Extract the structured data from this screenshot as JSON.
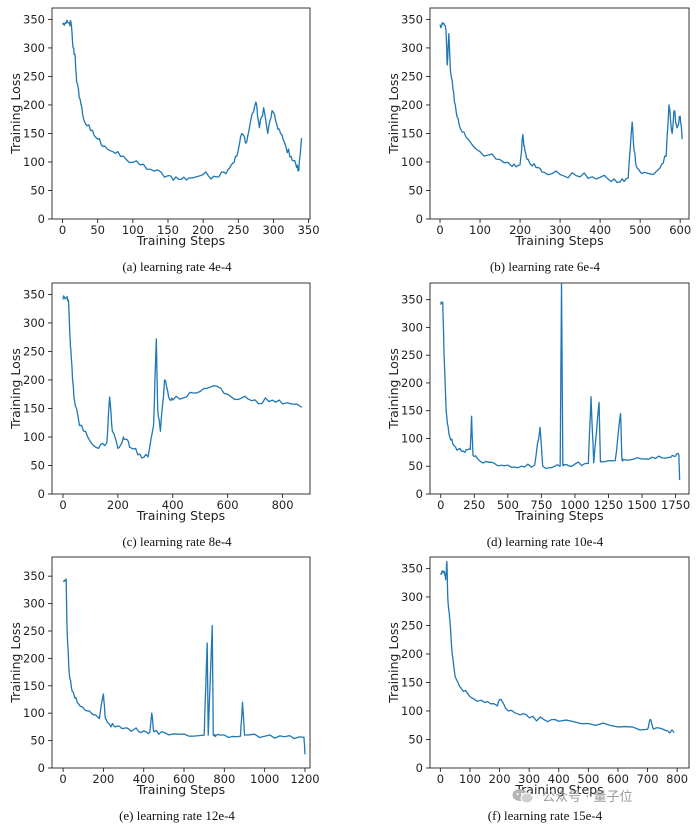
{
  "chart_data": [
    {
      "type": "line",
      "caption": "(a) learning rate 4e-4",
      "xlabel": "Training Steps",
      "ylabel": "Training Loss",
      "xlim": [
        -15,
        352
      ],
      "ylim": [
        0,
        370
      ],
      "xticks": [
        0,
        50,
        100,
        150,
        200,
        250,
        300,
        350
      ],
      "yticks": [
        0,
        50,
        100,
        150,
        200,
        250,
        300,
        350
      ],
      "color": "#1f77b4",
      "series": [
        {
          "x": [
            0,
            5,
            10,
            12,
            15,
            18,
            20,
            25,
            30,
            40,
            50,
            60,
            75,
            90,
            110,
            130,
            150,
            165,
            180,
            200,
            215,
            230,
            240,
            248,
            255,
            262,
            268,
            275,
            280,
            286,
            292,
            298,
            305,
            310,
            318,
            325,
            332,
            336,
            340
          ],
          "y": [
            341,
            343,
            342,
            345,
            300,
            285,
            240,
            210,
            175,
            155,
            140,
            128,
            115,
            105,
            95,
            84,
            76,
            70,
            72,
            78,
            75,
            82,
            95,
            110,
            150,
            135,
            175,
            205,
            160,
            195,
            150,
            190,
            165,
            150,
            125,
            110,
            95,
            85,
            142
          ],
          "noise": 6
        }
      ]
    },
    {
      "type": "line",
      "caption": "(b) learning rate 6e-4",
      "xlabel": "Training Steps",
      "ylabel": "Training Loss",
      "xlim": [
        -25,
        622
      ],
      "ylim": [
        0,
        370
      ],
      "xticks": [
        0,
        100,
        200,
        300,
        400,
        500,
        600
      ],
      "yticks": [
        0,
        50,
        100,
        150,
        200,
        250,
        300,
        350
      ],
      "color": "#1f77b4",
      "series": [
        {
          "x": [
            0,
            8,
            15,
            18,
            22,
            26,
            32,
            40,
            50,
            70,
            100,
            140,
            180,
            200,
            207,
            212,
            220,
            240,
            260,
            300,
            340,
            380,
            420,
            450,
            470,
            480,
            485,
            492,
            505,
            530,
            550,
            565,
            572,
            580,
            585,
            592,
            600,
            605
          ],
          "y": [
            341,
            342,
            330,
            270,
            325,
            260,
            230,
            190,
            160,
            140,
            118,
            105,
            92,
            95,
            148,
            120,
            105,
            90,
            82,
            78,
            76,
            74,
            70,
            65,
            72,
            170,
            120,
            90,
            80,
            78,
            90,
            110,
            200,
            150,
            190,
            160,
            180,
            140
          ],
          "noise": 6
        }
      ]
    },
    {
      "type": "line",
      "caption": "(c) learning rate 8e-4",
      "xlabel": "Training Steps",
      "ylabel": "Training Loss",
      "xlim": [
        -40,
        900
      ],
      "ylim": [
        0,
        370
      ],
      "xticks": [
        0,
        200,
        400,
        600,
        800
      ],
      "yticks": [
        0,
        50,
        100,
        150,
        200,
        250,
        300,
        350
      ],
      "color": "#1f77b4",
      "series": [
        {
          "x": [
            0,
            10,
            20,
            25,
            30,
            40,
            60,
            90,
            130,
            160,
            170,
            180,
            200,
            220,
            235,
            250,
            280,
            310,
            330,
            340,
            345,
            355,
            370,
            385,
            400,
            450,
            500,
            550,
            600,
            650,
            700,
            750,
            800,
            870
          ],
          "y": [
            341,
            343,
            340,
            280,
            240,
            170,
            120,
            100,
            80,
            90,
            170,
            110,
            80,
            100,
            95,
            80,
            70,
            65,
            120,
            272,
            150,
            110,
            200,
            170,
            165,
            170,
            180,
            190,
            175,
            168,
            165,
            162,
            158,
            152
          ],
          "noise": 6
        }
      ]
    },
    {
      "type": "line",
      "caption": "(d) learning rate 10e-4",
      "xlabel": "Training Steps",
      "ylabel": "Training Loss",
      "xlim": [
        -80,
        1850
      ],
      "ylim": [
        0,
        380
      ],
      "xticks": [
        0,
        250,
        500,
        750,
        1000,
        1250,
        1500,
        1750
      ],
      "yticks": [
        0,
        50,
        100,
        150,
        200,
        250,
        300,
        350
      ],
      "color": "#1f77b4",
      "series": [
        {
          "x": [
            0,
            15,
            25,
            40,
            60,
            90,
            130,
            180,
            220,
            230,
            240,
            280,
            330,
            400,
            500,
            600,
            700,
            740,
            760,
            850,
            890,
            900,
            910,
            920,
            1000,
            1100,
            1120,
            1140,
            1180,
            1190,
            1200,
            1300,
            1340,
            1350,
            1360,
            1500,
            1600,
            1700,
            1750,
            1775,
            1780
          ],
          "y": [
            341,
            345,
            250,
            150,
            110,
            90,
            80,
            75,
            80,
            140,
            70,
            62,
            58,
            55,
            52,
            50,
            52,
            120,
            50,
            50,
            50,
            380,
            52,
            53,
            54,
            55,
            175,
            56,
            165,
            58,
            58,
            60,
            145,
            62,
            62,
            63,
            64,
            66,
            68,
            70,
            25
          ],
          "noise": 4
        }
      ]
    },
    {
      "type": "line",
      "caption": "(e) learning rate 12e-4",
      "xlabel": "Training Steps",
      "ylabel": "Training Loss",
      "xlim": [
        -55,
        1225
      ],
      "ylim": [
        0,
        385
      ],
      "xticks": [
        0,
        200,
        400,
        600,
        800,
        1000,
        1200
      ],
      "yticks": [
        0,
        50,
        100,
        150,
        200,
        250,
        300,
        350
      ],
      "color": "#1f77b4",
      "series": [
        {
          "x": [
            0,
            15,
            20,
            30,
            45,
            70,
            100,
            140,
            180,
            200,
            210,
            230,
            260,
            300,
            350,
            400,
            430,
            440,
            450,
            500,
            600,
            700,
            715,
            720,
            740,
            745,
            760,
            800,
            880,
            890,
            900,
            1000,
            1100,
            1195,
            1200
          ],
          "y": [
            341,
            345,
            250,
            175,
            140,
            120,
            110,
            100,
            90,
            135,
            90,
            80,
            75,
            72,
            70,
            68,
            65,
            100,
            66,
            65,
            62,
            60,
            228,
            60,
            260,
            60,
            60,
            60,
            58,
            120,
            60,
            58,
            57,
            56,
            25
          ],
          "noise": 4
        }
      ]
    },
    {
      "type": "line",
      "caption": "(f) learning rate 15e-4",
      "xlabel": "Training Steps",
      "ylabel": "Training Loss",
      "xlim": [
        -35,
        840
      ],
      "ylim": [
        0,
        370
      ],
      "xticks": [
        0,
        100,
        200,
        300,
        400,
        500,
        600,
        700,
        800
      ],
      "yticks": [
        0,
        50,
        100,
        150,
        200,
        250,
        300,
        350
      ],
      "color": "#1f77b4",
      "series": [
        {
          "x": [
            0,
            12,
            18,
            22,
            25,
            28,
            32,
            40,
            50,
            70,
            100,
            150,
            190,
            200,
            220,
            260,
            300,
            350,
            400,
            500,
            600,
            700,
            710,
            720,
            760,
            790
          ],
          "y": [
            341,
            345,
            330,
            362,
            300,
            280,
            260,
            200,
            160,
            140,
            125,
            115,
            110,
            120,
            105,
            95,
            88,
            85,
            82,
            78,
            72,
            68,
            85,
            68,
            66,
            62
          ],
          "noise": 4
        }
      ]
    }
  ],
  "watermark": {
    "text": "公众号 · 量子位",
    "icon": "wechat-icon"
  }
}
